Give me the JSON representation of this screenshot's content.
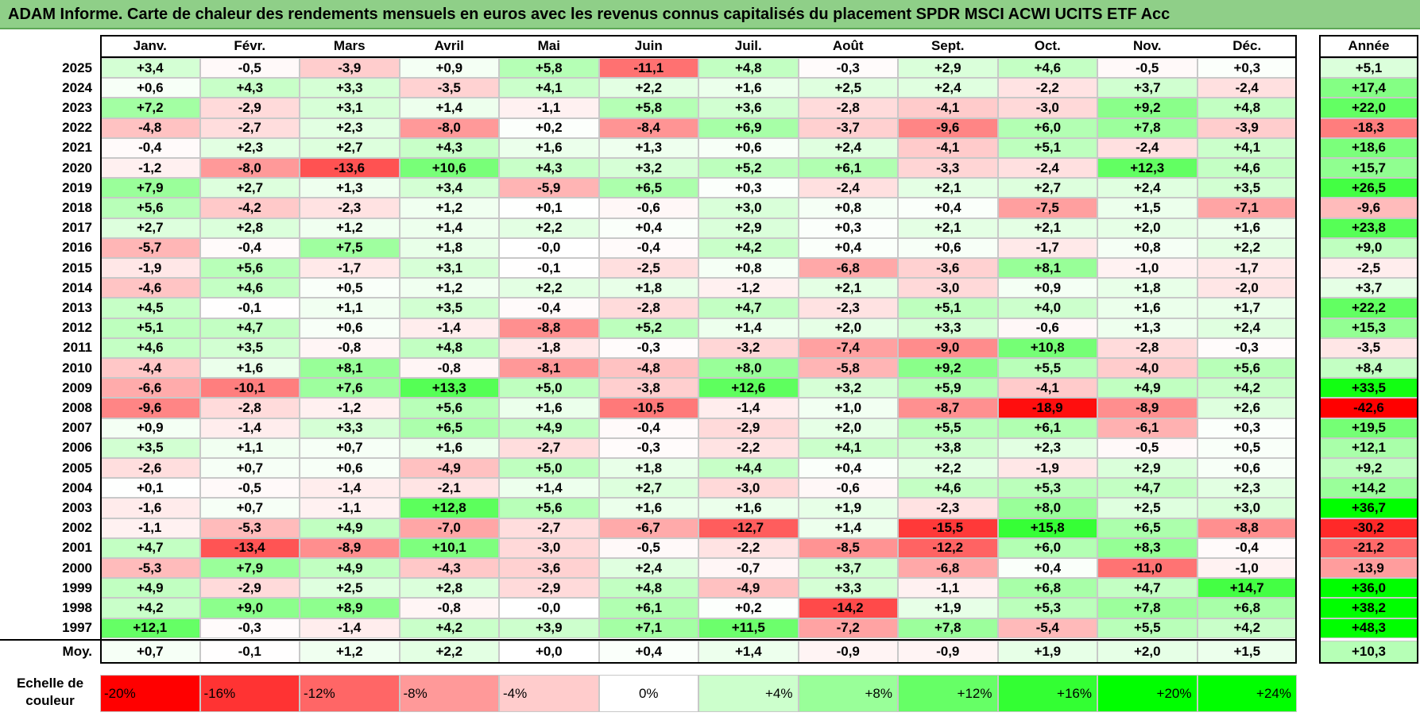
{
  "title": "ADAM Informe. Carte de chaleur des rendements mensuels en euros avec les revenus connus capitalisés du placement SPDR MSCI ACWI UCITS ETF Acc",
  "colors": {
    "title_bg": "#8fcf88",
    "negative_max": "#ff0000",
    "zero": "#ffffff",
    "positive_max": "#00ff00"
  },
  "chart_data": {
    "type": "heatmap",
    "months": [
      "Janv.",
      "Févr.",
      "Mars",
      "Avril",
      "Mai",
      "Juin",
      "Juil.",
      "Août",
      "Sept.",
      "Oct.",
      "Nov.",
      "Déc."
    ],
    "annual_header": "Année",
    "average_label": "Moy.",
    "rows": [
      {
        "year": "2025",
        "values": [
          "+3,4",
          "-0,5",
          "-3,9",
          "+0,9",
          "+5,8",
          "-11,1",
          "+4,8",
          "-0,3",
          "+2,9",
          "+4,6",
          "-0,5",
          "+0,3"
        ],
        "annual": "+5,1"
      },
      {
        "year": "2024",
        "values": [
          "+0,6",
          "+4,3",
          "+3,3",
          "-3,5",
          "+4,1",
          "+2,2",
          "+1,6",
          "+2,5",
          "+2,4",
          "-2,2",
          "+3,7",
          "-2,4"
        ],
        "annual": "+17,4"
      },
      {
        "year": "2023",
        "values": [
          "+7,2",
          "-2,9",
          "+3,1",
          "+1,4",
          "-1,1",
          "+5,8",
          "+3,6",
          "-2,8",
          "-4,1",
          "-3,0",
          "+9,2",
          "+4,8"
        ],
        "annual": "+22,0"
      },
      {
        "year": "2022",
        "values": [
          "-4,8",
          "-2,7",
          "+2,3",
          "-8,0",
          "+0,2",
          "-8,4",
          "+6,9",
          "-3,7",
          "-9,6",
          "+6,0",
          "+7,8",
          "-3,9"
        ],
        "annual": "-18,3"
      },
      {
        "year": "2021",
        "values": [
          "-0,4",
          "+2,3",
          "+2,7",
          "+4,3",
          "+1,6",
          "+1,3",
          "+0,6",
          "+2,4",
          "-4,1",
          "+5,1",
          "-2,4",
          "+4,1"
        ],
        "annual": "+18,6"
      },
      {
        "year": "2020",
        "values": [
          "-1,2",
          "-8,0",
          "-13,6",
          "+10,6",
          "+4,3",
          "+3,2",
          "+5,2",
          "+6,1",
          "-3,3",
          "-2,4",
          "+12,3",
          "+4,6"
        ],
        "annual": "+15,7"
      },
      {
        "year": "2019",
        "values": [
          "+7,9",
          "+2,7",
          "+1,3",
          "+3,4",
          "-5,9",
          "+6,5",
          "+0,3",
          "-2,4",
          "+2,1",
          "+2,7",
          "+2,4",
          "+3,5"
        ],
        "annual": "+26,5"
      },
      {
        "year": "2018",
        "values": [
          "+5,6",
          "-4,2",
          "-2,3",
          "+1,2",
          "+0,1",
          "-0,6",
          "+3,0",
          "+0,8",
          "+0,4",
          "-7,5",
          "+1,5",
          "-7,1"
        ],
        "annual": "-9,6"
      },
      {
        "year": "2017",
        "values": [
          "+2,7",
          "+2,8",
          "+1,2",
          "+1,4",
          "+2,2",
          "+0,4",
          "+2,9",
          "+0,3",
          "+2,1",
          "+2,1",
          "+2,0",
          "+1,6"
        ],
        "annual": "+23,8"
      },
      {
        "year": "2016",
        "values": [
          "-5,7",
          "-0,4",
          "+7,5",
          "+1,8",
          "-0,0",
          "-0,4",
          "+4,2",
          "+0,4",
          "+0,6",
          "-1,7",
          "+0,8",
          "+2,2"
        ],
        "annual": "+9,0"
      },
      {
        "year": "2015",
        "values": [
          "-1,9",
          "+5,6",
          "-1,7",
          "+3,1",
          "-0,1",
          "-2,5",
          "+0,8",
          "-6,8",
          "-3,6",
          "+8,1",
          "-1,0",
          "-1,7"
        ],
        "annual": "-2,5"
      },
      {
        "year": "2014",
        "values": [
          "-4,6",
          "+4,6",
          "+0,5",
          "+1,2",
          "+2,2",
          "+1,8",
          "-1,2",
          "+2,1",
          "-3,0",
          "+0,9",
          "+1,8",
          "-2,0"
        ],
        "annual": "+3,7"
      },
      {
        "year": "2013",
        "values": [
          "+4,5",
          "-0,1",
          "+1,1",
          "+3,5",
          "-0,4",
          "-2,8",
          "+4,7",
          "-2,3",
          "+5,1",
          "+4,0",
          "+1,6",
          "+1,7"
        ],
        "annual": "+22,2"
      },
      {
        "year": "2012",
        "values": [
          "+5,1",
          "+4,7",
          "+0,6",
          "-1,4",
          "-8,8",
          "+5,2",
          "+1,4",
          "+2,0",
          "+3,3",
          "-0,6",
          "+1,3",
          "+2,4"
        ],
        "annual": "+15,3"
      },
      {
        "year": "2011",
        "values": [
          "+4,6",
          "+3,5",
          "-0,8",
          "+4,8",
          "-1,8",
          "-0,3",
          "-3,2",
          "-7,4",
          "-9,0",
          "+10,8",
          "-2,8",
          "-0,3"
        ],
        "annual": "-3,5"
      },
      {
        "year": "2010",
        "values": [
          "-4,4",
          "+1,6",
          "+8,1",
          "-0,8",
          "-8,1",
          "-4,8",
          "+8,0",
          "-5,8",
          "+9,2",
          "+5,5",
          "-4,0",
          "+5,6"
        ],
        "annual": "+8,4"
      },
      {
        "year": "2009",
        "values": [
          "-6,6",
          "-10,1",
          "+7,6",
          "+13,3",
          "+5,0",
          "-3,8",
          "+12,6",
          "+3,2",
          "+5,9",
          "-4,1",
          "+4,9",
          "+4,2"
        ],
        "annual": "+33,5"
      },
      {
        "year": "2008",
        "values": [
          "-9,6",
          "-2,8",
          "-1,2",
          "+5,6",
          "+1,6",
          "-10,5",
          "-1,4",
          "+1,0",
          "-8,7",
          "-18,9",
          "-8,9",
          "+2,6"
        ],
        "annual": "-42,6"
      },
      {
        "year": "2007",
        "values": [
          "+0,9",
          "-1,4",
          "+3,3",
          "+6,5",
          "+4,9",
          "-0,4",
          "-2,9",
          "+2,0",
          "+5,5",
          "+6,1",
          "-6,1",
          "+0,3"
        ],
        "annual": "+19,5"
      },
      {
        "year": "2006",
        "values": [
          "+3,5",
          "+1,1",
          "+0,7",
          "+1,6",
          "-2,7",
          "-0,3",
          "-2,2",
          "+4,1",
          "+3,8",
          "+2,3",
          "-0,5",
          "+0,5"
        ],
        "annual": "+12,1"
      },
      {
        "year": "2005",
        "values": [
          "-2,6",
          "+0,7",
          "+0,6",
          "-4,9",
          "+5,0",
          "+1,8",
          "+4,4",
          "+0,4",
          "+2,2",
          "-1,9",
          "+2,9",
          "+0,6"
        ],
        "annual": "+9,2"
      },
      {
        "year": "2004",
        "values": [
          "+0,1",
          "-0,5",
          "-1,4",
          "-2,1",
          "+1,4",
          "+2,7",
          "-3,0",
          "-0,6",
          "+4,6",
          "+5,3",
          "+4,7",
          "+2,3"
        ],
        "annual": "+14,2"
      },
      {
        "year": "2003",
        "values": [
          "-1,6",
          "+0,7",
          "-1,1",
          "+12,8",
          "+5,6",
          "+1,6",
          "+1,6",
          "+1,9",
          "-2,3",
          "+8,0",
          "+2,5",
          "+3,0"
        ],
        "annual": "+36,7"
      },
      {
        "year": "2002",
        "values": [
          "-1,1",
          "-5,3",
          "+4,9",
          "-7,0",
          "-2,7",
          "-6,7",
          "-12,7",
          "+1,4",
          "-15,5",
          "+15,8",
          "+6,5",
          "-8,8"
        ],
        "annual": "-30,2"
      },
      {
        "year": "2001",
        "values": [
          "+4,7",
          "-13,4",
          "-8,9",
          "+10,1",
          "-3,0",
          "-0,5",
          "-2,2",
          "-8,5",
          "-12,2",
          "+6,0",
          "+8,3",
          "-0,4"
        ],
        "annual": "-21,2"
      },
      {
        "year": "2000",
        "values": [
          "-5,3",
          "+7,9",
          "+4,9",
          "-4,3",
          "-3,6",
          "+2,4",
          "-0,7",
          "+3,7",
          "-6,8",
          "+0,4",
          "-11,0",
          "-1,0"
        ],
        "annual": "-13,9"
      },
      {
        "year": "1999",
        "values": [
          "+4,9",
          "-2,9",
          "+2,5",
          "+2,8",
          "-2,9",
          "+4,8",
          "-4,9",
          "+3,3",
          "-1,1",
          "+6,8",
          "+4,7",
          "+14,7"
        ],
        "annual": "+36,0"
      },
      {
        "year": "1998",
        "values": [
          "+4,2",
          "+9,0",
          "+8,9",
          "-0,8",
          "-0,0",
          "+6,1",
          "+0,2",
          "-14,2",
          "+1,9",
          "+5,3",
          "+7,8",
          "+6,8"
        ],
        "annual": "+38,2"
      },
      {
        "year": "1997",
        "values": [
          "+12,1",
          "-0,3",
          "-1,4",
          "+4,2",
          "+3,9",
          "+7,1",
          "+11,5",
          "-7,2",
          "+7,8",
          "-5,4",
          "+5,5",
          "+4,2"
        ],
        "annual": "+48,3"
      }
    ],
    "average": {
      "values": [
        "+0,7",
        "-0,1",
        "+1,2",
        "+2,2",
        "+0,0",
        "+0,4",
        "+1,4",
        "-0,9",
        "-0,9",
        "+1,9",
        "+2,0",
        "+1,5"
      ],
      "annual": "+10,3"
    },
    "scale_label_line1": "Echelle de",
    "scale_label_line2": "couleur",
    "color_scale": [
      {
        "label": "-20%",
        "value": -20
      },
      {
        "label": "-16%",
        "value": -16
      },
      {
        "label": "-12%",
        "value": -12
      },
      {
        "label": "-8%",
        "value": -8
      },
      {
        "label": "-4%",
        "value": -4
      },
      {
        "label": "0%",
        "value": 0
      },
      {
        "label": "+4%",
        "value": 4
      },
      {
        "label": "+8%",
        "value": 8
      },
      {
        "label": "+12%",
        "value": 12
      },
      {
        "label": "+16%",
        "value": 16
      },
      {
        "label": "+20%",
        "value": 20
      },
      {
        "label": "+24%",
        "value": 24
      }
    ]
  }
}
